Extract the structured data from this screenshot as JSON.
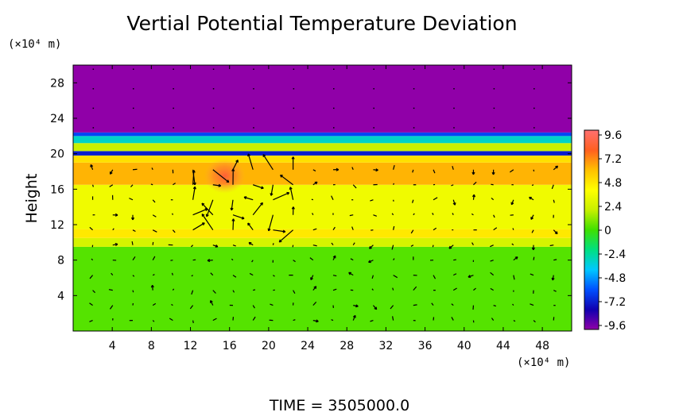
{
  "chart_data": {
    "type": "heatmap",
    "title": "Vertial Potential Temperature Deviation",
    "ylabel": "Height",
    "y_unit": "(×10⁴ m)",
    "x_unit": "(×10⁴ m)",
    "xlim": [
      0,
      51
    ],
    "ylim": [
      0,
      30
    ],
    "x_ticks": [
      "4",
      "8",
      "12",
      "16",
      "20",
      "24",
      "28",
      "32",
      "36",
      "40",
      "44",
      "48"
    ],
    "y_ticks": [
      "4",
      "8",
      "12",
      "16",
      "20",
      "24",
      "28"
    ],
    "colorbar_ticks": [
      "9.6",
      "7.2",
      "4.8",
      "2.4",
      "0",
      "-2.4",
      "-4.8",
      "-7.2",
      "-9.6"
    ],
    "colorbar_range": [
      -9.6,
      9.6
    ],
    "colorscale": [
      "#9000a8",
      "#1000b0",
      "#0050ff",
      "#00c8ff",
      "#00e080",
      "#40e000",
      "#c8f000",
      "#ffff00",
      "#ffc000",
      "#ff6020",
      "#ff7070"
    ],
    "bands": [
      {
        "y0": 0,
        "y1": 9.5,
        "value": 0.3
      },
      {
        "y0": 9.5,
        "y1": 10.5,
        "value": 2.4
      },
      {
        "y0": 10.5,
        "y1": 11.5,
        "value": 4.5
      },
      {
        "y0": 11.5,
        "y1": 16.5,
        "value": 3.3
      },
      {
        "y0": 16.5,
        "y1": 19.0,
        "value": 6.0
      },
      {
        "y0": 19.0,
        "y1": 19.8,
        "value": 4.8
      },
      {
        "y0": 19.8,
        "y1": 20.3,
        "value": -7.0
      },
      {
        "y0": 20.3,
        "y1": 21.2,
        "value": 2.0
      },
      {
        "y0": 21.2,
        "y1": 22.0,
        "value": -3.0
      },
      {
        "y0": 22.0,
        "y1": 22.4,
        "value": -6.0
      },
      {
        "y0": 22.4,
        "y1": 30,
        "value": -9.6
      }
    ],
    "hotspot": {
      "x": 15.5,
      "y": 17.5,
      "value": 8.5
    },
    "footer": "TIME  =  3505000.0"
  }
}
